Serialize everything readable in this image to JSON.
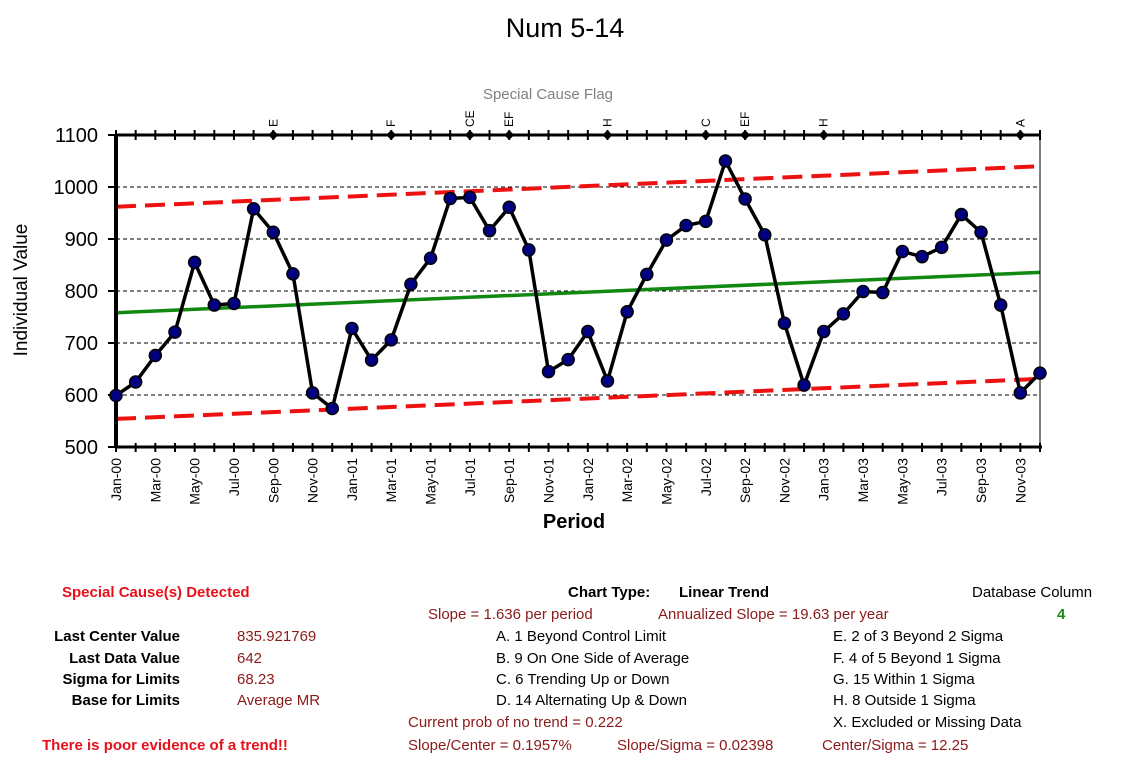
{
  "chart_data": {
    "type": "line",
    "title": "Num 5-14",
    "flag_title": "Special Cause Flag",
    "xlabel": "Period",
    "ylabel": "Individual Value",
    "ylim": [
      500,
      1100
    ],
    "yticks": [
      500,
      600,
      700,
      800,
      900,
      1000,
      1100
    ],
    "grid": "horizontal-dashed",
    "x_tick_labels": [
      "Jan-00",
      "Mar-00",
      "May-00",
      "Jul-00",
      "Sep-00",
      "Nov-00",
      "Jan-01",
      "Mar-01",
      "May-01",
      "Jul-01",
      "Sep-01",
      "Nov-01",
      "Jan-02",
      "Mar-02",
      "May-02",
      "Jul-02",
      "Sep-02",
      "Nov-02",
      "Jan-03",
      "Mar-03",
      "May-03",
      "Jul-03",
      "Sep-03",
      "Nov-03"
    ],
    "periods": [
      "Jan-00",
      "Feb-00",
      "Mar-00",
      "Apr-00",
      "May-00",
      "Jun-00",
      "Jul-00",
      "Aug-00",
      "Sep-00",
      "Oct-00",
      "Nov-00",
      "Dec-00",
      "Jan-01",
      "Feb-01",
      "Mar-01",
      "Apr-01",
      "May-01",
      "Jun-01",
      "Jul-01",
      "Aug-01",
      "Sep-01",
      "Oct-01",
      "Nov-01",
      "Dec-01",
      "Jan-02",
      "Feb-02",
      "Mar-02",
      "Apr-02",
      "May-02",
      "Jun-02",
      "Jul-02",
      "Aug-02",
      "Sep-02",
      "Oct-02",
      "Nov-02",
      "Dec-02",
      "Jan-03",
      "Feb-03",
      "Mar-03",
      "Apr-03",
      "May-03",
      "Jun-03",
      "Jul-03",
      "Aug-03",
      "Sep-03",
      "Oct-03",
      "Nov-03",
      "Dec-03"
    ],
    "series": [
      {
        "role": "data",
        "color": "#000080",
        "values": [
          599,
          625,
          676,
          721,
          855,
          773,
          776,
          958,
          913,
          833,
          604,
          574,
          728,
          667,
          706,
          813,
          863,
          978,
          980,
          916,
          961,
          879,
          645,
          668,
          722,
          627,
          760,
          832,
          898,
          926,
          934,
          1050,
          977,
          908,
          738,
          619,
          722,
          756,
          799,
          797,
          876,
          866,
          884,
          947,
          913,
          773,
          604,
          642
        ]
      },
      {
        "role": "center",
        "color": "#118811",
        "start": 758.2,
        "end": 835.921769
      },
      {
        "role": "upper-limit",
        "color": "#ee1111",
        "start": 962,
        "end": 1040
      },
      {
        "role": "lower-limit",
        "color": "#ee1111",
        "start": 554,
        "end": 631
      }
    ],
    "flags": [
      {
        "period": "Sep-00",
        "label": "E"
      },
      {
        "period": "Mar-01",
        "label": "F"
      },
      {
        "period": "Jul-01",
        "label": "CE"
      },
      {
        "period": "Sep-01",
        "label": "EF"
      },
      {
        "period": "Feb-02",
        "label": "H"
      },
      {
        "period": "Jul-02",
        "label": "C"
      },
      {
        "period": "Sep-02",
        "label": "EF"
      },
      {
        "period": "Jan-03",
        "label": "H"
      },
      {
        "period": "Nov-03",
        "label": "A"
      }
    ]
  },
  "info": {
    "special_cause": "Special Cause(s) Detected",
    "poor_evidence": "There is poor evidence of a trend!!",
    "stats": [
      {
        "label": "Last Center Value",
        "value": "835.921769"
      },
      {
        "label": "Last Data Value",
        "value": "642"
      },
      {
        "label": "Sigma for Limits",
        "value": "68.23"
      },
      {
        "label": "Base for Limits",
        "value": "Average MR"
      }
    ],
    "chart_type_label": "Chart Type:",
    "chart_type_value": "Linear Trend",
    "database_column_label": "Database Column",
    "database_column_value": "4",
    "slope": "Slope = 1.636 per period",
    "annualized_slope": "Annualized Slope = 19.63 per year",
    "rules_left": [
      "A.  1 Beyond Control Limit",
      "B.  9 On One Side of Average",
      "C.  6 Trending Up or Down",
      "D.  14 Alternating  Up & Down"
    ],
    "rules_right": [
      "E.   2 of 3 Beyond 2 Sigma",
      "F.   4 of 5 Beyond 1 Sigma",
      "G.   15 Within 1 Sigma",
      "H.   8 Outside 1 Sigma",
      "X.   Excluded or Missing Data"
    ],
    "prob_no_trend": "Current prob of no trend = 0.222",
    "slope_center": "Slope/Center = 0.1957%",
    "slope_sigma": "Slope/Sigma = 0.02398",
    "center_sigma": "Center/Sigma = 12.25"
  }
}
